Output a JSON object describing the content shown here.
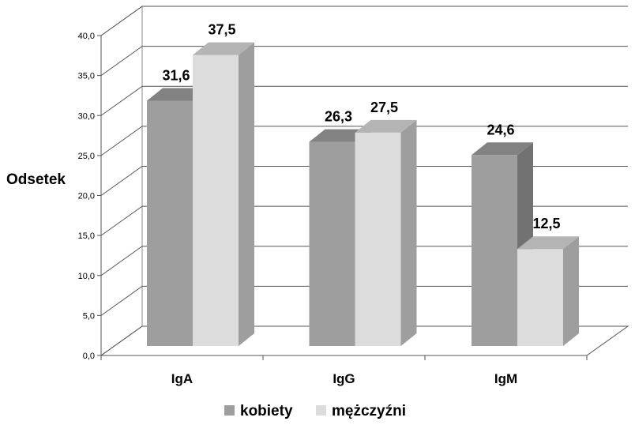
{
  "chart_data": {
    "type": "bar",
    "title": "",
    "xlabel": "",
    "ylabel": "Odsetek",
    "ylim": [
      0,
      40
    ],
    "ytick_step": 5,
    "ytick_labels": [
      "0,0",
      "5,0",
      "10,0",
      "15,0",
      "20,0",
      "25,0",
      "30,0",
      "35,0",
      "40,0"
    ],
    "categories": [
      "IgA",
      "IgG",
      "IgM"
    ],
    "series": [
      {
        "name": "kobiety",
        "color": "#9e9e9e",
        "values": [
          31.6,
          26.3,
          24.6
        ],
        "labels": [
          "31,6",
          "26,3",
          "24,6"
        ]
      },
      {
        "name": "mężczyźni",
        "color": "#dcdcdc",
        "values": [
          37.5,
          27.5,
          12.5
        ],
        "labels": [
          "37,5",
          "27,5",
          "12,5"
        ]
      }
    ],
    "grid": true,
    "legend_position": "bottom",
    "style": "3d-clustered-column"
  }
}
